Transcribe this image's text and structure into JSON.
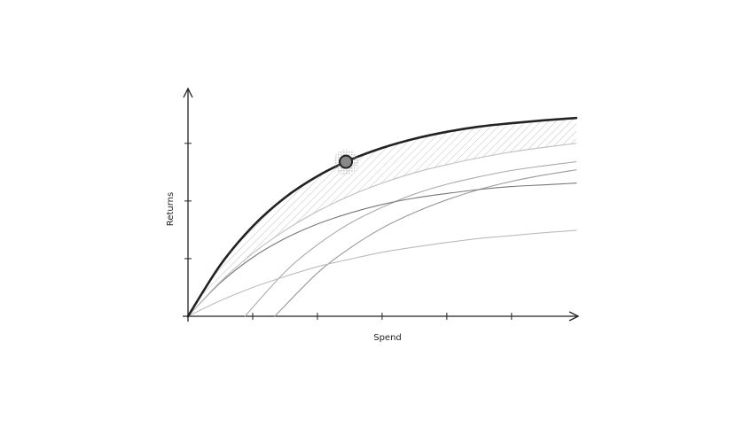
{
  "chart_data": {
    "type": "line",
    "x_label": "Spend",
    "y_label": "Returns",
    "xlim": [
      0,
      6.03
    ],
    "ylim": [
      0,
      3.95
    ],
    "xticks": [
      1,
      2,
      3,
      4,
      5
    ],
    "yticks": [
      1,
      2,
      3
    ],
    "hatch_between": [
      0,
      1
    ],
    "hatch_color": "#bbbbbb",
    "series": [
      {
        "color": "#222222",
        "width": 2.6,
        "x": [
          0,
          0.5,
          1,
          1.5,
          2,
          2.5,
          3,
          3.5,
          4,
          4.5,
          5,
          5.5,
          6
        ],
        "values": [
          0,
          0.89,
          1.56,
          2.06,
          2.43,
          2.71,
          2.92,
          3.08,
          3.2,
          3.29,
          3.35,
          3.4,
          3.44
        ]
      },
      {
        "color": "#c4c4c4",
        "width": 1.2,
        "x": [
          0,
          0.5,
          1,
          1.5,
          2,
          2.5,
          3,
          3.5,
          4,
          4.5,
          5,
          5.5,
          6
        ],
        "values": [
          0,
          0.6,
          1.09,
          1.49,
          1.82,
          2.09,
          2.31,
          2.49,
          2.63,
          2.75,
          2.85,
          2.93,
          3.0
        ]
      },
      {
        "color": "#777777",
        "width": 1.1,
        "x": [
          0,
          0.5,
          1,
          1.5,
          2,
          2.5,
          3,
          3.5,
          4,
          4.5,
          5,
          5.5,
          6
        ],
        "values": [
          0,
          0.58,
          1.02,
          1.35,
          1.6,
          1.79,
          1.94,
          2.05,
          2.13,
          2.2,
          2.25,
          2.28,
          2.31
        ]
      },
      {
        "color": "#bbbbbb",
        "width": 1.1,
        "x": [
          0,
          0.5,
          1,
          1.5,
          2,
          2.5,
          3,
          3.5,
          4,
          4.5,
          5,
          5.5,
          6
        ],
        "values": [
          0,
          0.27,
          0.5,
          0.69,
          0.86,
          0.99,
          1.11,
          1.2,
          1.28,
          1.35,
          1.4,
          1.45,
          1.49
        ]
      },
      {
        "color": "#aaaaaa",
        "width": 1.1,
        "x": [
          0.88,
          1.5,
          2,
          2.5,
          3,
          3.5,
          4,
          4.5,
          5,
          5.5,
          6
        ],
        "values": [
          0,
          0.77,
          1.24,
          1.61,
          1.89,
          2.12,
          2.29,
          2.42,
          2.53,
          2.61,
          2.68
        ]
      },
      {
        "color": "#999999",
        "width": 1.1,
        "x": [
          1.34,
          2,
          2.5,
          3,
          3.5,
          4,
          4.5,
          5,
          5.5,
          6
        ],
        "values": [
          0,
          0.75,
          1.18,
          1.53,
          1.8,
          2.02,
          2.2,
          2.34,
          2.45,
          2.54
        ]
      }
    ],
    "highlight": {
      "x": 2.44,
      "y": 2.68,
      "color": "#888888"
    }
  }
}
